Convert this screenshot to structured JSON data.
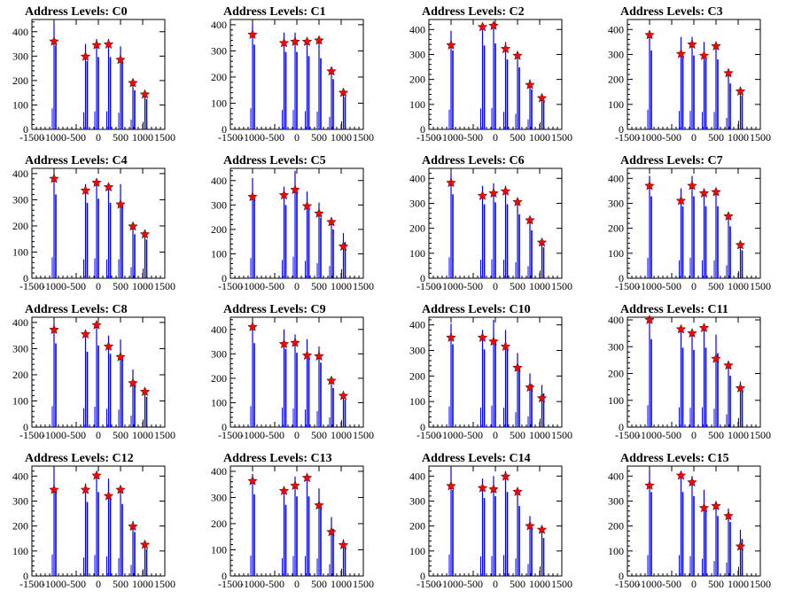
{
  "chart_data": {
    "type": "histogram-grid",
    "title_prefix": "Address Levels: ",
    "xlim": [
      -1500,
      1500
    ],
    "xticks": [
      -1500,
      -1000,
      -500,
      0,
      500,
      1000,
      1500
    ],
    "xtick_labels": [
      "-1500",
      "-1000",
      "-500",
      "0",
      "500",
      "1000",
      "1500"
    ],
    "yticks": [
      0,
      100,
      200,
      300,
      400
    ],
    "yticks_right": [
      0,
      100,
      200,
      300,
      400
    ],
    "series_color": "#0000ff",
    "marker_color": "#ff0000",
    "panels": [
      {
        "name": "C0",
        "ylim": [
          0,
          450
        ],
        "peaks": [
          {
            "x": -1000,
            "y": 430,
            "m": 360
          },
          {
            "x": -290,
            "y": 350,
            "m": 298
          },
          {
            "x": -40,
            "y": 370,
            "m": 345
          },
          {
            "x": 230,
            "y": 370,
            "m": 348
          },
          {
            "x": 500,
            "y": 340,
            "m": 285
          },
          {
            "x": 780,
            "y": 200,
            "m": 190
          },
          {
            "x": 1050,
            "y": 155,
            "m": 143
          }
        ]
      },
      {
        "name": "C1",
        "ylim": [
          0,
          420
        ],
        "peaks": [
          {
            "x": -1000,
            "y": 405,
            "m": 362
          },
          {
            "x": -290,
            "y": 370,
            "m": 330
          },
          {
            "x": -40,
            "y": 370,
            "m": 335
          },
          {
            "x": 230,
            "y": 350,
            "m": 335
          },
          {
            "x": 500,
            "y": 340,
            "m": 340
          },
          {
            "x": 780,
            "y": 240,
            "m": 222
          },
          {
            "x": 1050,
            "y": 155,
            "m": 140
          }
        ]
      },
      {
        "name": "C2",
        "ylim": [
          0,
          440
        ],
        "peaks": [
          {
            "x": -1000,
            "y": 395,
            "m": 337
          },
          {
            "x": -290,
            "y": 420,
            "m": 410
          },
          {
            "x": -40,
            "y": 430,
            "m": 415
          },
          {
            "x": 230,
            "y": 350,
            "m": 322
          },
          {
            "x": 500,
            "y": 310,
            "m": 295
          },
          {
            "x": 780,
            "y": 200,
            "m": 178
          },
          {
            "x": 1050,
            "y": 140,
            "m": 125
          }
        ]
      },
      {
        "name": "C3",
        "ylim": [
          0,
          440
        ],
        "peaks": [
          {
            "x": -1000,
            "y": 395,
            "m": 378
          },
          {
            "x": -290,
            "y": 370,
            "m": 302
          },
          {
            "x": -40,
            "y": 370,
            "m": 340
          },
          {
            "x": 230,
            "y": 350,
            "m": 295
          },
          {
            "x": 500,
            "y": 350,
            "m": 333
          },
          {
            "x": 780,
            "y": 230,
            "m": 225
          },
          {
            "x": 1050,
            "y": 170,
            "m": 152
          }
        ]
      },
      {
        "name": "C4",
        "ylim": [
          0,
          420
        ],
        "peaks": [
          {
            "x": -1000,
            "y": 400,
            "m": 380
          },
          {
            "x": -290,
            "y": 360,
            "m": 335
          },
          {
            "x": -40,
            "y": 380,
            "m": 365
          },
          {
            "x": 230,
            "y": 360,
            "m": 348
          },
          {
            "x": 500,
            "y": 360,
            "m": 282
          },
          {
            "x": 780,
            "y": 210,
            "m": 198
          },
          {
            "x": 1050,
            "y": 185,
            "m": 168
          }
        ]
      },
      {
        "name": "C5",
        "ylim": [
          0,
          450
        ],
        "peaks": [
          {
            "x": -1000,
            "y": 410,
            "m": 333
          },
          {
            "x": -290,
            "y": 375,
            "m": 340
          },
          {
            "x": -40,
            "y": 440,
            "m": 362
          },
          {
            "x": 230,
            "y": 355,
            "m": 295
          },
          {
            "x": 500,
            "y": 310,
            "m": 265
          },
          {
            "x": 780,
            "y": 250,
            "m": 230
          },
          {
            "x": 1050,
            "y": 185,
            "m": 130
          }
        ]
      },
      {
        "name": "C6",
        "ylim": [
          0,
          440
        ],
        "peaks": [
          {
            "x": -1000,
            "y": 420,
            "m": 382
          },
          {
            "x": -290,
            "y": 370,
            "m": 330
          },
          {
            "x": -40,
            "y": 380,
            "m": 340
          },
          {
            "x": 230,
            "y": 370,
            "m": 348
          },
          {
            "x": 500,
            "y": 320,
            "m": 305
          },
          {
            "x": 780,
            "y": 240,
            "m": 232
          },
          {
            "x": 1050,
            "y": 155,
            "m": 143
          }
        ]
      },
      {
        "name": "C7",
        "ylim": [
          0,
          440
        ],
        "peaks": [
          {
            "x": -1000,
            "y": 410,
            "m": 370
          },
          {
            "x": -290,
            "y": 360,
            "m": 310
          },
          {
            "x": -40,
            "y": 410,
            "m": 370
          },
          {
            "x": 230,
            "y": 360,
            "m": 340
          },
          {
            "x": 500,
            "y": 360,
            "m": 345
          },
          {
            "x": 780,
            "y": 260,
            "m": 248
          },
          {
            "x": 1050,
            "y": 140,
            "m": 133
          }
        ]
      },
      {
        "name": "C8",
        "ylim": [
          0,
          420
        ],
        "peaks": [
          {
            "x": -1000,
            "y": 400,
            "m": 372
          },
          {
            "x": -290,
            "y": 360,
            "m": 355
          },
          {
            "x": -40,
            "y": 390,
            "m": 390
          },
          {
            "x": 230,
            "y": 350,
            "m": 308
          },
          {
            "x": 500,
            "y": 335,
            "m": 268
          },
          {
            "x": 780,
            "y": 220,
            "m": 168
          },
          {
            "x": 1050,
            "y": 145,
            "m": 135
          }
        ]
      },
      {
        "name": "C9",
        "ylim": [
          0,
          450
        ],
        "peaks": [
          {
            "x": -1000,
            "y": 430,
            "m": 410
          },
          {
            "x": -290,
            "y": 400,
            "m": 340
          },
          {
            "x": -40,
            "y": 380,
            "m": 345
          },
          {
            "x": 230,
            "y": 360,
            "m": 293
          },
          {
            "x": 500,
            "y": 330,
            "m": 290
          },
          {
            "x": 780,
            "y": 200,
            "m": 190
          },
          {
            "x": 1050,
            "y": 140,
            "m": 128
          }
        ]
      },
      {
        "name": "C10",
        "ylim": [
          0,
          430
        ],
        "peaks": [
          {
            "x": -1000,
            "y": 405,
            "m": 350
          },
          {
            "x": -290,
            "y": 380,
            "m": 350
          },
          {
            "x": -40,
            "y": 420,
            "m": 335
          },
          {
            "x": 230,
            "y": 380,
            "m": 315
          },
          {
            "x": 500,
            "y": 290,
            "m": 232
          },
          {
            "x": 780,
            "y": 210,
            "m": 155
          },
          {
            "x": 1050,
            "y": 165,
            "m": 113
          }
        ]
      },
      {
        "name": "C11",
        "ylim": [
          0,
          410
        ],
        "peaks": [
          {
            "x": -1000,
            "y": 410,
            "m": 400
          },
          {
            "x": -290,
            "y": 370,
            "m": 365
          },
          {
            "x": -40,
            "y": 360,
            "m": 350
          },
          {
            "x": 230,
            "y": 370,
            "m": 370
          },
          {
            "x": 500,
            "y": 345,
            "m": 255
          },
          {
            "x": 780,
            "y": 240,
            "m": 230
          },
          {
            "x": 1050,
            "y": 170,
            "m": 145
          }
        ]
      },
      {
        "name": "C12",
        "ylim": [
          0,
          440
        ],
        "peaks": [
          {
            "x": -1000,
            "y": 430,
            "m": 345
          },
          {
            "x": -290,
            "y": 370,
            "m": 345
          },
          {
            "x": -40,
            "y": 420,
            "m": 402
          },
          {
            "x": 230,
            "y": 390,
            "m": 320
          },
          {
            "x": 500,
            "y": 360,
            "m": 345
          },
          {
            "x": 780,
            "y": 220,
            "m": 198
          },
          {
            "x": 1050,
            "y": 135,
            "m": 125
          }
        ]
      },
      {
        "name": "C13",
        "ylim": [
          0,
          420
        ],
        "peaks": [
          {
            "x": -1000,
            "y": 390,
            "m": 363
          },
          {
            "x": -290,
            "y": 340,
            "m": 325
          },
          {
            "x": -40,
            "y": 380,
            "m": 345
          },
          {
            "x": 230,
            "y": 380,
            "m": 375
          },
          {
            "x": 500,
            "y": 335,
            "m": 270
          },
          {
            "x": 780,
            "y": 225,
            "m": 168
          },
          {
            "x": 1050,
            "y": 140,
            "m": 118
          }
        ]
      },
      {
        "name": "C14",
        "ylim": [
          0,
          440
        ],
        "peaks": [
          {
            "x": -1000,
            "y": 430,
            "m": 360
          },
          {
            "x": -290,
            "y": 390,
            "m": 352
          },
          {
            "x": -40,
            "y": 400,
            "m": 347
          },
          {
            "x": 230,
            "y": 420,
            "m": 398
          },
          {
            "x": 500,
            "y": 350,
            "m": 337
          },
          {
            "x": 780,
            "y": 240,
            "m": 200
          },
          {
            "x": 1050,
            "y": 190,
            "m": 185
          }
        ]
      },
      {
        "name": "C15",
        "ylim": [
          0,
          440
        ],
        "peaks": [
          {
            "x": -1000,
            "y": 420,
            "m": 362
          },
          {
            "x": -290,
            "y": 420,
            "m": 402
          },
          {
            "x": -40,
            "y": 400,
            "m": 375
          },
          {
            "x": 230,
            "y": 345,
            "m": 272
          },
          {
            "x": 500,
            "y": 300,
            "m": 280
          },
          {
            "x": 780,
            "y": 270,
            "m": 240
          },
          {
            "x": 1050,
            "y": 185,
            "m": 118
          }
        ]
      }
    ]
  }
}
